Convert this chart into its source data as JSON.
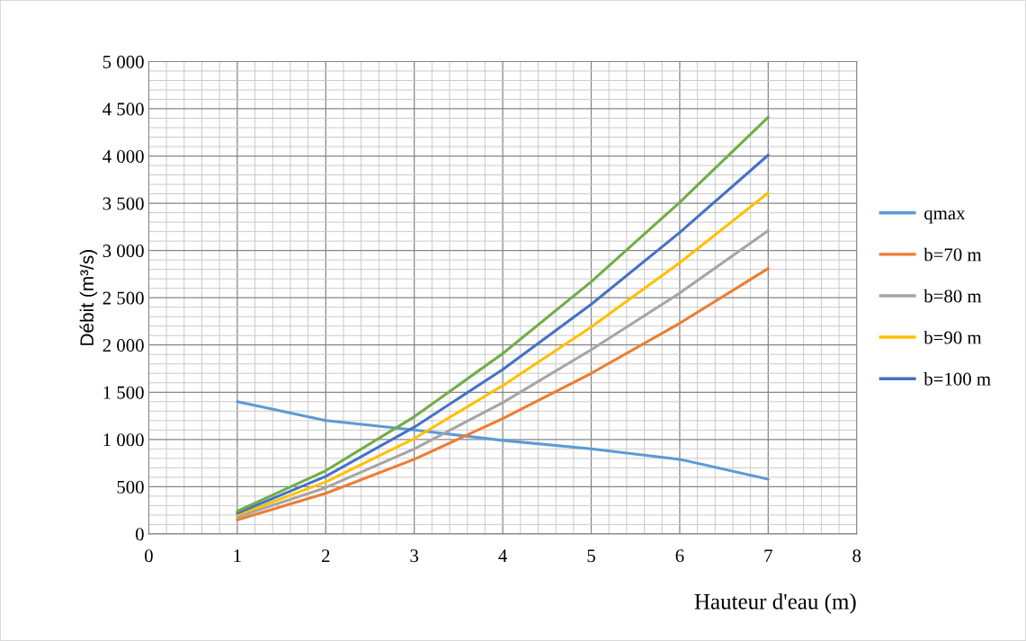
{
  "chart_data": {
    "type": "line",
    "xlabel": "Hauteur d'eau (m)",
    "ylabel": "Débit (m³/s)",
    "x": [
      1,
      2,
      3,
      4,
      5,
      6,
      7
    ],
    "series": [
      {
        "name": "qmax",
        "color": "#5b9bd5",
        "values": [
          1400,
          1200,
          1100,
          990,
          900,
          790,
          580
        ]
      },
      {
        "name": "b=70 m",
        "color": "#ed7d31",
        "values": [
          150,
          430,
          790,
          1220,
          1700,
          2230,
          2810
        ]
      },
      {
        "name": "b=80 m",
        "color": "#a5a5a5",
        "values": [
          180,
          490,
          900,
          1390,
          1950,
          2550,
          3210
        ]
      },
      {
        "name": "b=90 m",
        "color": "#ffc000",
        "values": [
          200,
          550,
          1010,
          1570,
          2190,
          2870,
          3610
        ]
      },
      {
        "name": "b=100 m",
        "color": "#4472c4",
        "values": [
          220,
          610,
          1130,
          1740,
          2430,
          3190,
          4010
        ]
      },
      {
        "color": "#70ad47",
        "values": [
          240,
          670,
          1240,
          1910,
          2670,
          3510,
          4410
        ]
      }
    ],
    "xlim": [
      0,
      8
    ],
    "xticks": [
      0,
      1,
      2,
      3,
      4,
      5,
      6,
      7,
      8
    ],
    "ylim": [
      0,
      5000
    ],
    "yticks": [
      0,
      500,
      {
        "value": 1000,
        "label": "1 000"
      },
      {
        "value": 1500,
        "label": "1 500"
      },
      {
        "value": 2000,
        "label": "2 000"
      },
      {
        "value": 2500,
        "label": "2 500"
      },
      {
        "value": 3000,
        "label": "3 000"
      },
      {
        "value": 3500,
        "label": "3 500"
      },
      {
        "value": 4000,
        "label": "4 000"
      },
      {
        "value": 4500,
        "label": "4 500"
      },
      {
        "value": 5000,
        "label": "5 000"
      }
    ],
    "grid": true,
    "legend": "right",
    "marker": "none",
    "line_style": "solid"
  }
}
